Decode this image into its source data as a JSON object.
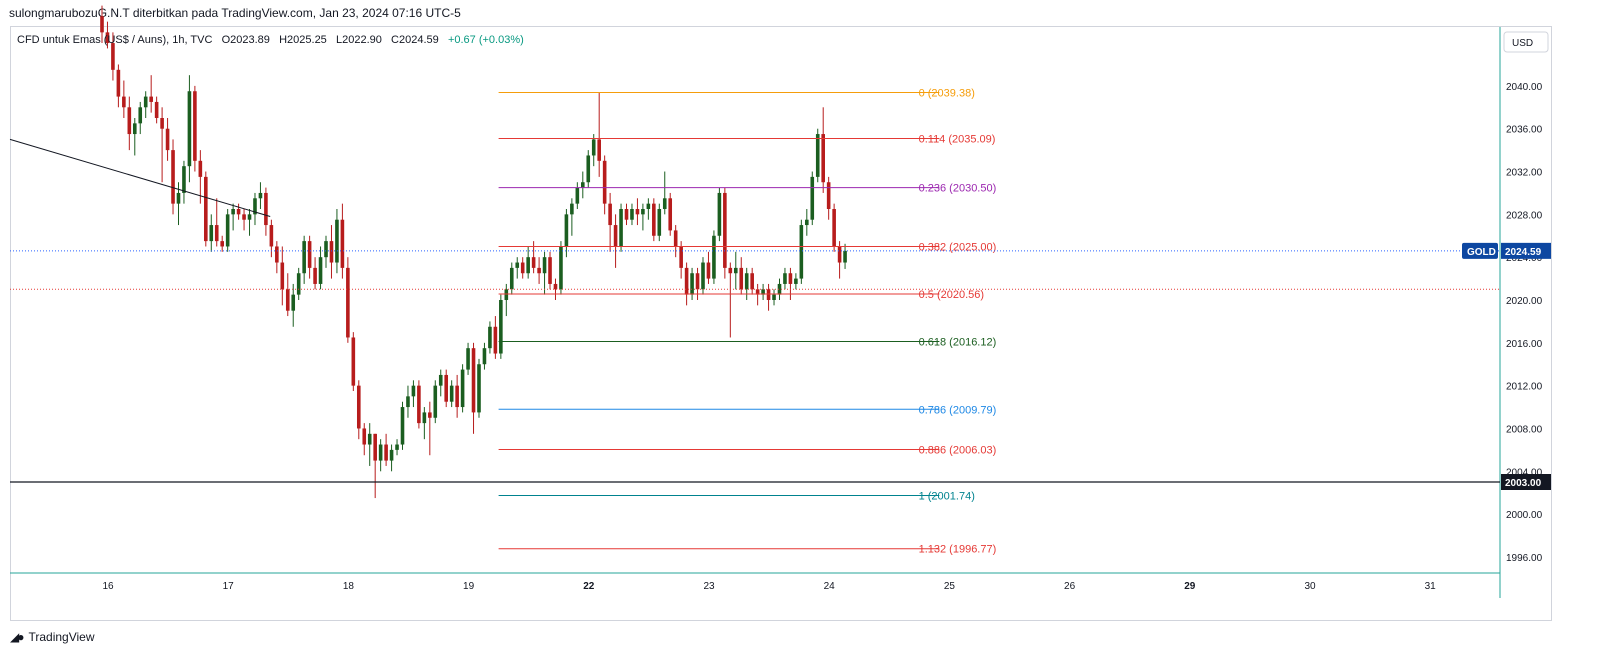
{
  "header": {
    "text": "sulongmarubozuG.N.T diterbitkan pada TradingView.com, Jan 23, 2024 07:16 UTC-5"
  },
  "legend": {
    "symbol": "CFD untuk Emas (US$ / Auns), 1h, TVC",
    "open": "O2023.89",
    "high": "H2025.25",
    "low": "L2022.90",
    "close": "C2024.59",
    "change": "+0.67 (+0.03%)"
  },
  "currency": "USD",
  "brand": "TradingView",
  "colors": {
    "up": "#1b5e20",
    "down": "#b71c1c",
    "price_line": "#2962ff",
    "symbol_badge": "#0d47a1"
  },
  "chart_data": {
    "type": "candlestick",
    "symbol_badge": "GOLD",
    "last_price_label": "2024.59",
    "last_price": 2024.59,
    "horizontal_line": {
      "value": 2003.0,
      "label": "2003.00"
    },
    "red_dotted_line": 2021.0,
    "ylim": [
      1994.5,
      2045.5
    ],
    "y_ticks": [
      {
        "value": 2040,
        "label": "2040.00"
      },
      {
        "value": 2036,
        "label": "2036.00"
      },
      {
        "value": 2032,
        "label": "2032.00"
      },
      {
        "value": 2028,
        "label": "2028.00"
      },
      {
        "value": 2024,
        "label": "2024.00"
      },
      {
        "value": 2020,
        "label": "2020.00"
      },
      {
        "value": 2016,
        "label": "2016.00"
      },
      {
        "value": 2012,
        "label": "2012.00"
      },
      {
        "value": 2008,
        "label": "2008.00"
      },
      {
        "value": 2004,
        "label": "2004.00"
      },
      {
        "value": 2000,
        "label": "2000.00"
      },
      {
        "value": 1996,
        "label": "1996.00"
      }
    ],
    "x_ticks": [
      {
        "label": "16",
        "bold": false
      },
      {
        "label": "17",
        "bold": false
      },
      {
        "label": "18",
        "bold": false
      },
      {
        "label": "19",
        "bold": false
      },
      {
        "label": "22",
        "bold": true
      },
      {
        "label": "23",
        "bold": false
      },
      {
        "label": "24",
        "bold": false
      },
      {
        "label": "25",
        "bold": false
      },
      {
        "label": "26",
        "bold": false
      },
      {
        "label": "29",
        "bold": true
      },
      {
        "label": "30",
        "bold": false
      },
      {
        "label": "31",
        "bold": false
      }
    ],
    "trendline": {
      "start": [
        "15",
        2035.0
      ],
      "end": [
        "17 09:00",
        2027.8
      ]
    },
    "fib_levels": [
      {
        "ratio": "0",
        "value": 2039.38,
        "label": "0 (2039.38)",
        "color": "#f59d0b"
      },
      {
        "ratio": "0.114",
        "value": 2035.09,
        "label": "0.114 (2035.09)",
        "color": "#e53935"
      },
      {
        "ratio": "0.236",
        "value": 2030.5,
        "label": "0.236 (2030.50)",
        "color": "#9c27b0"
      },
      {
        "ratio": "0.382",
        "value": 2025.0,
        "label": "0.382 (2025.00)",
        "color": "#e53935"
      },
      {
        "ratio": "0.5",
        "value": 2020.56,
        "label": "0.5 (2020.56)",
        "color": "#e53935"
      },
      {
        "ratio": "0.618",
        "value": 2016.12,
        "label": "0.618 (2016.12)",
        "color": "#1b5e20"
      },
      {
        "ratio": "0.786",
        "value": 2009.79,
        "label": "0.786 (2009.79)",
        "color": "#1e88e5"
      },
      {
        "ratio": "0.886",
        "value": 2006.03,
        "label": "0.886 (2006.03)",
        "color": "#e53935"
      },
      {
        "ratio": "1",
        "value": 2001.74,
        "label": "1 (2001.74)",
        "color": "#00838f"
      },
      {
        "ratio": "1.132",
        "value": 1996.77,
        "label": "1.132 (1996.77)",
        "color": "#e53935"
      }
    ],
    "candles": [
      [
        2046.5,
        2047.5,
        2044.0,
        2045.0
      ],
      [
        2045.0,
        2046.0,
        2043.5,
        2044.0
      ],
      [
        2044.0,
        2045.0,
        2040.5,
        2041.5
      ],
      [
        2041.5,
        2042.0,
        2038.0,
        2039.0
      ],
      [
        2039.0,
        2040.5,
        2037.0,
        2038.0
      ],
      [
        2038.0,
        2039.0,
        2034.0,
        2035.5
      ],
      [
        2035.5,
        2037.0,
        2033.5,
        2036.5
      ],
      [
        2036.5,
        2038.5,
        2035.5,
        2038.0
      ],
      [
        2038.0,
        2039.5,
        2037.0,
        2039.0
      ],
      [
        2039.0,
        2041.0,
        2037.5,
        2038.5
      ],
      [
        2038.5,
        2039.0,
        2036.5,
        2037.0
      ],
      [
        2037.0,
        2038.0,
        2031.0,
        2036.0
      ],
      [
        2036.0,
        2037.0,
        2033.0,
        2034.0
      ],
      [
        2034.0,
        2035.0,
        2028.0,
        2029.0
      ],
      [
        2029.0,
        2031.0,
        2027.0,
        2030.0
      ],
      [
        2030.0,
        2033.0,
        2029.0,
        2032.5
      ],
      [
        2032.5,
        2041.0,
        2031.0,
        2039.5
      ],
      [
        2039.5,
        2040.0,
        2032.0,
        2033.0
      ],
      [
        2033.0,
        2034.0,
        2029.0,
        2031.5
      ],
      [
        2031.5,
        2032.0,
        2025.0,
        2025.5
      ],
      [
        2025.5,
        2028.0,
        2024.5,
        2027.0
      ],
      [
        2027.0,
        2029.5,
        2025.0,
        2025.5
      ],
      [
        2025.5,
        2026.0,
        2024.5,
        2025.0
      ],
      [
        2025.0,
        2028.5,
        2024.5,
        2028.0
      ],
      [
        2028.0,
        2029.0,
        2026.5,
        2028.5
      ],
      [
        2028.5,
        2029.0,
        2027.5,
        2028.0
      ],
      [
        2028.0,
        2028.5,
        2026.5,
        2027.5
      ],
      [
        2027.5,
        2028.5,
        2026.0,
        2028.0
      ],
      [
        2028.0,
        2030.0,
        2027.0,
        2029.5
      ],
      [
        2029.5,
        2031.0,
        2028.5,
        2030.0
      ],
      [
        2030.0,
        2030.5,
        2026.0,
        2027.0
      ],
      [
        2027.0,
        2027.5,
        2024.0,
        2025.0
      ],
      [
        2025.0,
        2025.5,
        2022.5,
        2023.5
      ],
      [
        2023.5,
        2025.0,
        2019.5,
        2021.0
      ],
      [
        2021.0,
        2022.5,
        2018.5,
        2019.0
      ],
      [
        2019.0,
        2021.5,
        2017.5,
        2020.5
      ],
      [
        2020.5,
        2023.0,
        2020.0,
        2022.5
      ],
      [
        2022.5,
        2026.0,
        2021.5,
        2025.5
      ],
      [
        2025.5,
        2026.0,
        2022.0,
        2023.0
      ],
      [
        2023.0,
        2024.0,
        2021.0,
        2021.5
      ],
      [
        2021.5,
        2025.0,
        2021.0,
        2024.0
      ],
      [
        2024.0,
        2026.0,
        2023.0,
        2025.5
      ],
      [
        2025.5,
        2027.0,
        2022.0,
        2023.5
      ],
      [
        2023.5,
        2028.5,
        2022.5,
        2027.5
      ],
      [
        2027.5,
        2029.0,
        2022.0,
        2023.0
      ],
      [
        2023.0,
        2024.0,
        2016.0,
        2016.5
      ],
      [
        2016.5,
        2017.0,
        2011.5,
        2012.0
      ],
      [
        2012.0,
        2012.5,
        2007.0,
        2008.0
      ],
      [
        2008.0,
        2008.5,
        2005.5,
        2006.5
      ],
      [
        2006.5,
        2008.5,
        2004.5,
        2007.5
      ],
      [
        2007.5,
        2007.5,
        2001.5,
        2005.0
      ],
      [
        2005.0,
        2007.0,
        2004.0,
        2006.5
      ],
      [
        2006.5,
        2007.5,
        2004.5,
        2005.0
      ],
      [
        2005.0,
        2006.5,
        2004.0,
        2006.0
      ],
      [
        2006.0,
        2007.0,
        2005.5,
        2006.5
      ],
      [
        2006.5,
        2010.5,
        2006.0,
        2010.0
      ],
      [
        2010.0,
        2012.0,
        2009.0,
        2011.0
      ],
      [
        2011.0,
        2012.5,
        2010.0,
        2012.0
      ],
      [
        2012.0,
        2012.5,
        2008.0,
        2008.5
      ],
      [
        2008.5,
        2010.0,
        2007.0,
        2009.5
      ],
      [
        2009.5,
        2010.5,
        2005.5,
        2009.0
      ],
      [
        2009.0,
        2012.5,
        2008.5,
        2012.0
      ],
      [
        2012.0,
        2013.5,
        2011.0,
        2013.0
      ],
      [
        2013.0,
        2013.5,
        2010.0,
        2010.5
      ],
      [
        2010.5,
        2012.5,
        2010.0,
        2012.0
      ],
      [
        2012.0,
        2013.0,
        2009.0,
        2010.0
      ],
      [
        2010.0,
        2014.0,
        2009.5,
        2013.5
      ],
      [
        2013.5,
        2016.0,
        2013.0,
        2015.5
      ],
      [
        2015.5,
        2016.0,
        2007.5,
        2009.5
      ],
      [
        2009.5,
        2014.5,
        2009.0,
        2014.0
      ],
      [
        2014.0,
        2016.0,
        2013.5,
        2015.5
      ],
      [
        2015.5,
        2018.0,
        2015.0,
        2017.5
      ],
      [
        2017.5,
        2018.5,
        2014.5,
        2015.0
      ],
      [
        2015.0,
        2020.5,
        2014.5,
        2020.0
      ],
      [
        2020.0,
        2021.5,
        2018.5,
        2021.0
      ],
      [
        2021.0,
        2023.5,
        2020.5,
        2023.0
      ],
      [
        2023.0,
        2024.0,
        2022.0,
        2023.5
      ],
      [
        2023.5,
        2024.0,
        2022.0,
        2022.5
      ],
      [
        2022.5,
        2025.0,
        2022.0,
        2024.0
      ],
      [
        2024.0,
        2025.5,
        2022.5,
        2023.0
      ],
      [
        2023.0,
        2024.0,
        2021.5,
        2022.5
      ],
      [
        2022.5,
        2024.5,
        2020.5,
        2024.0
      ],
      [
        2024.0,
        2024.5,
        2021.0,
        2021.5
      ],
      [
        2021.5,
        2022.0,
        2020.0,
        2021.0
      ],
      [
        2021.0,
        2025.5,
        2020.5,
        2025.0
      ],
      [
        2025.0,
        2028.5,
        2024.0,
        2028.0
      ],
      [
        2028.0,
        2029.5,
        2026.0,
        2029.0
      ],
      [
        2029.0,
        2031.0,
        2028.5,
        2030.5
      ],
      [
        2030.5,
        2032.0,
        2029.5,
        2031.0
      ],
      [
        2031.0,
        2034.0,
        2030.5,
        2033.5
      ],
      [
        2033.5,
        2035.5,
        2032.5,
        2035.0
      ],
      [
        2035.0,
        2039.4,
        2031.5,
        2033.0
      ],
      [
        2033.0,
        2033.5,
        2028.0,
        2029.0
      ],
      [
        2029.0,
        2030.0,
        2024.5,
        2027.0
      ],
      [
        2027.0,
        2028.0,
        2023.0,
        2025.0
      ],
      [
        2025.0,
        2029.0,
        2024.5,
        2028.5
      ],
      [
        2028.5,
        2029.0,
        2027.0,
        2027.5
      ],
      [
        2027.5,
        2029.0,
        2027.0,
        2028.5
      ],
      [
        2028.5,
        2029.5,
        2027.0,
        2028.0
      ],
      [
        2028.0,
        2029.0,
        2026.5,
        2028.5
      ],
      [
        2028.5,
        2029.5,
        2027.5,
        2029.0
      ],
      [
        2029.0,
        2029.5,
        2025.5,
        2026.0
      ],
      [
        2026.0,
        2029.0,
        2025.5,
        2028.5
      ],
      [
        2028.5,
        2032.0,
        2028.0,
        2029.5
      ],
      [
        2029.5,
        2030.0,
        2026.0,
        2026.5
      ],
      [
        2026.5,
        2027.0,
        2024.0,
        2025.0
      ],
      [
        2025.0,
        2025.5,
        2022.0,
        2023.0
      ],
      [
        2023.0,
        2023.5,
        2019.5,
        2020.5
      ],
      [
        2020.5,
        2023.0,
        2020.0,
        2022.5
      ],
      [
        2022.5,
        2023.0,
        2020.0,
        2021.0
      ],
      [
        2021.0,
        2024.0,
        2020.5,
        2023.5
      ],
      [
        2023.5,
        2024.5,
        2021.5,
        2022.0
      ],
      [
        2022.0,
        2026.5,
        2021.5,
        2026.0
      ],
      [
        2026.0,
        2030.5,
        2025.5,
        2030.0
      ],
      [
        2030.0,
        2030.5,
        2022.0,
        2023.0
      ],
      [
        2023.0,
        2023.5,
        2016.5,
        2022.5
      ],
      [
        2022.5,
        2024.5,
        2021.0,
        2023.0
      ],
      [
        2023.0,
        2024.0,
        2020.5,
        2021.0
      ],
      [
        2021.0,
        2023.0,
        2020.0,
        2022.5
      ],
      [
        2022.5,
        2023.0,
        2020.5,
        2021.0
      ],
      [
        2021.0,
        2021.5,
        2019.5,
        2020.5
      ],
      [
        2020.5,
        2021.5,
        2020.0,
        2021.0
      ],
      [
        2021.0,
        2021.5,
        2019.0,
        2020.0
      ],
      [
        2020.0,
        2021.0,
        2019.5,
        2020.5
      ],
      [
        2020.5,
        2022.0,
        2020.0,
        2021.5
      ],
      [
        2021.5,
        2023.0,
        2021.0,
        2022.5
      ],
      [
        2022.5,
        2023.0,
        2020.0,
        2021.5
      ],
      [
        2021.5,
        2022.5,
        2021.0,
        2022.0
      ],
      [
        2022.0,
        2027.5,
        2021.5,
        2027.0
      ],
      [
        2027.0,
        2028.5,
        2026.0,
        2027.5
      ],
      [
        2027.5,
        2032.0,
        2027.0,
        2031.5
      ],
      [
        2031.5,
        2036.0,
        2031.0,
        2035.5
      ],
      [
        2035.5,
        2038.0,
        2030.0,
        2031.0
      ],
      [
        2031.0,
        2031.5,
        2027.5,
        2028.5
      ],
      [
        2028.5,
        2029.0,
        2024.5,
        2025.0
      ],
      [
        2025.0,
        2025.5,
        2022.0,
        2023.5
      ],
      [
        2023.5,
        2025.25,
        2022.9,
        2024.59
      ]
    ]
  }
}
